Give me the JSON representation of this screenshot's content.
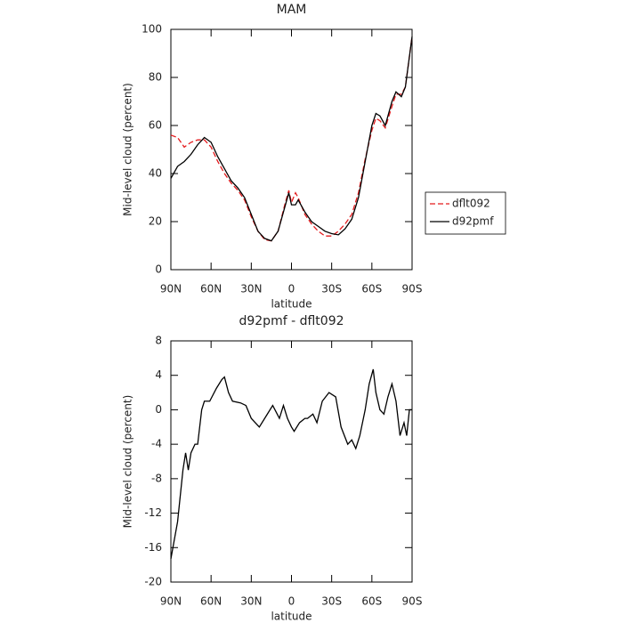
{
  "chart_data": [
    {
      "type": "line",
      "title": "MAM",
      "xlabel": "latitude",
      "ylabel": "Mid-level cloud (percent)",
      "legend": "right",
      "x": [
        90,
        85,
        80,
        75,
        70,
        65,
        60,
        55,
        50,
        45,
        40,
        35,
        30,
        25,
        20,
        15,
        10,
        5,
        2,
        0,
        -3,
        -5,
        -10,
        -15,
        -20,
        -25,
        -30,
        -35,
        -40,
        -45,
        -50,
        -55,
        -60,
        -63,
        -66,
        -70,
        -75,
        -78,
        -82,
        -85,
        -90
      ],
      "series": [
        {
          "name": "dflt092",
          "color": "#e41a1c",
          "style": "dashed",
          "values": [
            56,
            55,
            51,
            53,
            54,
            54,
            51,
            45,
            40,
            36,
            33,
            29,
            22,
            16,
            12.5,
            12,
            16,
            27,
            33,
            28,
            32,
            30,
            23,
            19,
            16,
            14,
            14,
            16,
            19,
            23,
            32,
            46,
            58,
            63,
            62,
            59,
            68,
            73,
            73,
            76,
            97
          ]
        },
        {
          "name": "d92pmf",
          "color": "#000000",
          "style": "solid",
          "values": [
            38,
            43,
            45,
            48,
            52,
            55,
            53,
            47,
            42,
            37,
            34,
            30,
            23,
            16,
            13,
            12,
            16,
            26,
            32,
            27,
            27,
            29,
            24,
            20,
            18,
            16,
            15,
            14.5,
            17,
            21,
            30,
            45,
            60,
            65,
            64,
            60,
            70,
            74,
            72,
            76,
            97
          ]
        }
      ],
      "xlim": [
        90,
        -90
      ],
      "xticks": [
        {
          "value": 90,
          "label": "90N"
        },
        {
          "value": 60,
          "label": "60N"
        },
        {
          "value": 30,
          "label": "30N"
        },
        0,
        {
          "value": -30,
          "label": "30S"
        },
        {
          "value": -60,
          "label": "60S"
        },
        {
          "value": -90,
          "label": "90S"
        }
      ],
      "ylim": [
        0,
        100
      ],
      "yticks": [
        0,
        20,
        40,
        60,
        80,
        100
      ]
    },
    {
      "type": "line",
      "title": "d92pmf - dflt092",
      "xlabel": "latitude",
      "ylabel": "Mid-level cloud (percent)",
      "x": [
        90,
        85,
        81,
        79,
        77,
        75,
        72,
        70,
        67,
        65,
        61,
        56,
        52,
        50,
        47,
        44,
        38,
        34,
        30,
        24,
        18,
        14,
        9,
        6,
        3,
        0,
        -2,
        -6,
        -10,
        -12,
        -16,
        -19,
        -23,
        -28,
        -33,
        -37,
        -42,
        -45,
        -48,
        -51,
        -55,
        -58,
        -61,
        -63,
        -66,
        -69,
        -72,
        -75,
        -78,
        -81,
        -84,
        -86,
        -88,
        -90
      ],
      "series": [
        {
          "color": "#000000",
          "style": "solid",
          "values": [
            -17.3,
            -13,
            -7,
            -5,
            -7,
            -5,
            -4,
            -4,
            0,
            1,
            1,
            2.5,
            3.5,
            3.8,
            2,
            1,
            0.8,
            0.5,
            -1,
            -2,
            -0.5,
            0.5,
            -1,
            0.5,
            -1,
            -2,
            -2.5,
            -1.5,
            -1,
            -1,
            -0.5,
            -1.5,
            1,
            2,
            1.5,
            -2,
            -4,
            -3.5,
            -4.5,
            -3,
            0,
            3,
            4.7,
            2,
            0,
            -0.5,
            1.5,
            3,
            1,
            -3,
            -1.5,
            -3,
            0,
            0
          ]
        }
      ],
      "xlim": [
        90,
        -90
      ],
      "xticks": [
        {
          "value": 90,
          "label": "90N"
        },
        {
          "value": 60,
          "label": "60N"
        },
        {
          "value": 30,
          "label": "30N"
        },
        0,
        {
          "value": -30,
          "label": "30S"
        },
        {
          "value": -60,
          "label": "60S"
        },
        {
          "value": -90,
          "label": "90S"
        }
      ],
      "ylim": [
        -20,
        8
      ],
      "yticks": [
        -20,
        -16,
        -12,
        -8,
        -4,
        0,
        4,
        8
      ]
    }
  ]
}
